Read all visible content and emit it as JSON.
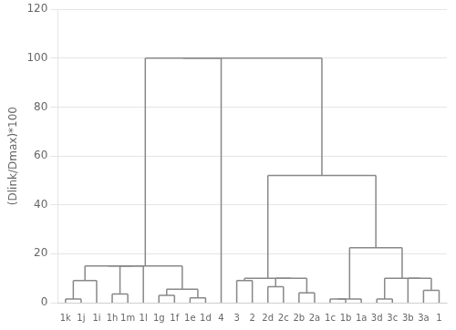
{
  "chart_data": {
    "type": "dendrogram",
    "categories": [
      "1k",
      "1j",
      "1i",
      "1h",
      "1m",
      "1l",
      "1g",
      "1f",
      "1e",
      "1d",
      "4",
      "3",
      "2",
      "2d",
      "2c",
      "2b",
      "2a",
      "1c",
      "1b",
      "1a",
      "3d",
      "3c",
      "3b",
      "3a",
      "1"
    ],
    "ylabel": "(Dlink/Dmax)*100",
    "xlim": [
      -0.5,
      24.5
    ],
    "ylim": [
      0,
      120
    ],
    "yticks": [
      0,
      20,
      40,
      60,
      80,
      100,
      120
    ],
    "grid": "y",
    "color": "#888888",
    "segments": [
      {
        "x1": 0,
        "x2": 0,
        "y1": 0,
        "y2": 1.5
      },
      {
        "x1": 1,
        "x2": 1,
        "y1": 0,
        "y2": 1.5
      },
      {
        "x1": 0,
        "x2": 1,
        "y1": 1.5,
        "y2": 1.5
      },
      {
        "x1": 0.5,
        "x2": 0.5,
        "y1": 1.5,
        "y2": 9.0
      },
      {
        "x1": 2,
        "x2": 2,
        "y1": 0,
        "y2": 9.0
      },
      {
        "x1": 0.5,
        "x2": 2,
        "y1": 9.0,
        "y2": 9.0
      },
      {
        "x1": 3,
        "x2": 3,
        "y1": 0,
        "y2": 3.5
      },
      {
        "x1": 4,
        "x2": 4,
        "y1": 0,
        "y2": 3.5
      },
      {
        "x1": 3,
        "x2": 4,
        "y1": 3.5,
        "y2": 3.5
      },
      {
        "x1": 3.5,
        "x2": 3.5,
        "y1": 3.5,
        "y2": 15.0
      },
      {
        "x1": 5,
        "x2": 5,
        "y1": 0,
        "y2": 15.0
      },
      {
        "x1": 3.5,
        "x2": 5,
        "y1": 15.0,
        "y2": 15.0
      },
      {
        "x1": 1.25,
        "x2": 1.25,
        "y1": 9.0,
        "y2": 15.0
      },
      {
        "x1": 1.25,
        "x2": 4.25,
        "y1": 15.0,
        "y2": 15.0
      },
      {
        "x1": 6,
        "x2": 6,
        "y1": 0,
        "y2": 3.0
      },
      {
        "x1": 7,
        "x2": 7,
        "y1": 0,
        "y2": 3.0
      },
      {
        "x1": 6,
        "x2": 7,
        "y1": 3.0,
        "y2": 3.0
      },
      {
        "x1": 8,
        "x2": 8,
        "y1": 0,
        "y2": 2.0
      },
      {
        "x1": 9,
        "x2": 9,
        "y1": 0,
        "y2": 2.0
      },
      {
        "x1": 8,
        "x2": 9,
        "y1": 2.0,
        "y2": 2.0
      },
      {
        "x1": 6.5,
        "x2": 6.5,
        "y1": 3.0,
        "y2": 5.5
      },
      {
        "x1": 8.5,
        "x2": 8.5,
        "y1": 2.0,
        "y2": 5.5
      },
      {
        "x1": 6.5,
        "x2": 8.5,
        "y1": 5.5,
        "y2": 5.5
      },
      {
        "x1": 7.5,
        "x2": 7.5,
        "y1": 5.5,
        "y2": 15.0
      },
      {
        "x1": 2.75,
        "x2": 2.75,
        "y1": 15.0,
        "y2": 15.0
      },
      {
        "x1": 2.75,
        "x2": 7.5,
        "y1": 15.0,
        "y2": 15.0
      },
      {
        "x1": 5.125,
        "x2": 5.125,
        "y1": 15.0,
        "y2": 100.0
      },
      {
        "x1": 10,
        "x2": 10,
        "y1": 0,
        "y2": 100.0
      },
      {
        "x1": 5.125,
        "x2": 10,
        "y1": 100.0,
        "y2": 100.0
      },
      {
        "x1": 11,
        "x2": 11,
        "y1": 0,
        "y2": 9.0
      },
      {
        "x1": 12,
        "x2": 12,
        "y1": 0,
        "y2": 9.0
      },
      {
        "x1": 11,
        "x2": 12,
        "y1": 9.0,
        "y2": 9.0
      },
      {
        "x1": 13,
        "x2": 13,
        "y1": 0,
        "y2": 6.5
      },
      {
        "x1": 14,
        "x2": 14,
        "y1": 0,
        "y2": 6.5
      },
      {
        "x1": 13,
        "x2": 14,
        "y1": 6.5,
        "y2": 6.5
      },
      {
        "x1": 15,
        "x2": 15,
        "y1": 0,
        "y2": 4.0
      },
      {
        "x1": 16,
        "x2": 16,
        "y1": 0,
        "y2": 4.0
      },
      {
        "x1": 15,
        "x2": 16,
        "y1": 4.0,
        "y2": 4.0
      },
      {
        "x1": 13.5,
        "x2": 13.5,
        "y1": 6.5,
        "y2": 10.0
      },
      {
        "x1": 15.5,
        "x2": 15.5,
        "y1": 4.0,
        "y2": 10.0
      },
      {
        "x1": 13.5,
        "x2": 15.5,
        "y1": 10.0,
        "y2": 10.0
      },
      {
        "x1": 11.5,
        "x2": 11.5,
        "y1": 9.0,
        "y2": 10.0
      },
      {
        "x1": 11.5,
        "x2": 14.5,
        "y1": 10.0,
        "y2": 10.0
      },
      {
        "x1": 17,
        "x2": 17,
        "y1": 0,
        "y2": 1.5
      },
      {
        "x1": 18,
        "x2": 18,
        "y1": 0,
        "y2": 1.5
      },
      {
        "x1": 17,
        "x2": 18,
        "y1": 1.5,
        "y2": 1.5
      },
      {
        "x1": 17.5,
        "x2": 17.5,
        "y1": 1.5,
        "y2": 1.5
      },
      {
        "x1": 19,
        "x2": 19,
        "y1": 0,
        "y2": 1.5
      },
      {
        "x1": 17.5,
        "x2": 19,
        "y1": 1.5,
        "y2": 1.5
      },
      {
        "x1": 20,
        "x2": 20,
        "y1": 0,
        "y2": 1.5
      },
      {
        "x1": 21,
        "x2": 21,
        "y1": 0,
        "y2": 1.5
      },
      {
        "x1": 20,
        "x2": 21,
        "y1": 1.5,
        "y2": 1.5
      },
      {
        "x1": 23,
        "x2": 23,
        "y1": 0,
        "y2": 5.0
      },
      {
        "x1": 24,
        "x2": 24,
        "y1": 0,
        "y2": 5.0
      },
      {
        "x1": 23,
        "x2": 24,
        "y1": 5.0,
        "y2": 5.0
      },
      {
        "x1": 22,
        "x2": 22,
        "y1": 0,
        "y2": 10.0
      },
      {
        "x1": 23.5,
        "x2": 23.5,
        "y1": 5.0,
        "y2": 10.0
      },
      {
        "x1": 22,
        "x2": 23.5,
        "y1": 10.0,
        "y2": 10.0
      },
      {
        "x1": 20.5,
        "x2": 20.5,
        "y1": 1.5,
        "y2": 10.0
      },
      {
        "x1": 20.5,
        "x2": 22.75,
        "y1": 10.0,
        "y2": 10.0
      },
      {
        "x1": 18.25,
        "x2": 18.25,
        "y1": 1.5,
        "y2": 22.5
      },
      {
        "x1": 21.625,
        "x2": 21.625,
        "y1": 10.0,
        "y2": 22.5
      },
      {
        "x1": 18.25,
        "x2": 21.625,
        "y1": 22.5,
        "y2": 22.5
      },
      {
        "x1": 13.0,
        "x2": 13.0,
        "y1": 10.0,
        "y2": 52.0
      },
      {
        "x1": 19.9375,
        "x2": 19.9375,
        "y1": 22.5,
        "y2": 52.0
      },
      {
        "x1": 13.0,
        "x2": 19.9375,
        "y1": 52.0,
        "y2": 52.0
      },
      {
        "x1": 16.47,
        "x2": 16.47,
        "y1": 52.0,
        "y2": 100.0
      },
      {
        "x1": 7.5625,
        "x2": 16.47,
        "y1": 100.0,
        "y2": 100.0
      }
    ]
  }
}
